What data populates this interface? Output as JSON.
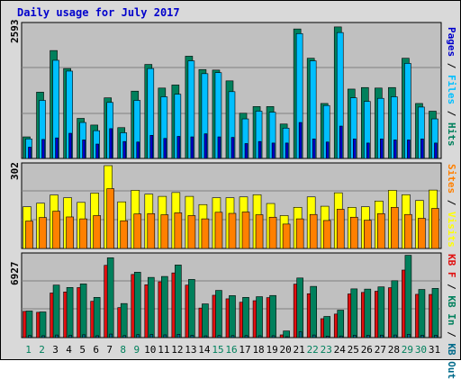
{
  "title": "Daily usage for July 2017",
  "colors": {
    "background": "#ffffff",
    "frame": "#d9d9d9",
    "plot": "#c0c0c0",
    "hits": "#00805c",
    "files": "#00bfff",
    "pages": "#0000cc",
    "visits": "#ffff00",
    "sites": "#ff8000",
    "kbin": "#00805c",
    "kbout": "#006a8a",
    "kbf": "#e01010",
    "weekday": "#000000",
    "weekend": "#00805c",
    "text": "#000000",
    "title": "#0000cc"
  },
  "chart_data": [
    {
      "type": "bar",
      "name_text": "Hits, Files, Pages",
      "y_max_label": "2593",
      "ylim": [
        0,
        2593
      ],
      "legend": [
        {
          "label": "Pages",
          "color": "#0000cc"
        },
        {
          "label": "Files",
          "color": "#00bfff"
        },
        {
          "label": "Hits",
          "color": "#00805c"
        }
      ],
      "categories": [
        "1",
        "2",
        "3",
        "4",
        "5",
        "6",
        "7",
        "8",
        "9",
        "10",
        "11",
        "12",
        "13",
        "14",
        "15",
        "16",
        "17",
        "18",
        "19",
        "20",
        "21",
        "22",
        "23",
        "24",
        "25",
        "26",
        "27",
        "28",
        "29",
        "30",
        "31"
      ],
      "weekend_days": [
        1,
        2,
        8,
        9,
        15,
        16,
        22,
        23,
        29,
        30
      ],
      "series": [
        {
          "name": "Hits",
          "values": [
            420,
            1290,
            2100,
            1750,
            780,
            650,
            1180,
            600,
            1310,
            1830,
            1370,
            1430,
            1990,
            1730,
            1720,
            1510,
            880,
            1010,
            1010,
            670,
            2520,
            1950,
            1070,
            2560,
            1350,
            1380,
            1370,
            1380,
            1950,
            1070,
            920
          ]
        },
        {
          "name": "Files",
          "values": [
            380,
            1130,
            1910,
            1700,
            700,
            540,
            1090,
            500,
            1130,
            1750,
            1200,
            1250,
            1900,
            1650,
            1670,
            1300,
            770,
            920,
            900,
            590,
            2430,
            1900,
            1030,
            2450,
            1180,
            1110,
            1170,
            1200,
            1850,
            1000,
            770
          ]
        },
        {
          "name": "Pages",
          "values": [
            220,
            370,
            400,
            490,
            360,
            280,
            580,
            330,
            320,
            450,
            390,
            430,
            420,
            480,
            420,
            410,
            290,
            330,
            300,
            300,
            700,
            380,
            320,
            630,
            380,
            300,
            380,
            360,
            360,
            380,
            300
          ]
        }
      ]
    },
    {
      "type": "bar",
      "name_text": "Visits, Sites",
      "y_max_label": "302",
      "ylim": [
        0,
        302
      ],
      "legend": [
        {
          "label": "Sites",
          "color": "#ff8000"
        },
        {
          "label": "Visits",
          "color": "#ffff00"
        }
      ],
      "categories": [
        "1",
        "2",
        "3",
        "4",
        "5",
        "6",
        "7",
        "8",
        "9",
        "10",
        "11",
        "12",
        "13",
        "14",
        "15",
        "16",
        "17",
        "18",
        "19",
        "20",
        "21",
        "22",
        "23",
        "24",
        "25",
        "26",
        "27",
        "28",
        "29",
        "30",
        "31"
      ],
      "series": [
        {
          "name": "Visits",
          "values": [
            152,
            165,
            195,
            185,
            168,
            202,
            302,
            170,
            212,
            198,
            190,
            204,
            190,
            160,
            185,
            185,
            188,
            196,
            164,
            120,
            150,
            188,
            154,
            203,
            150,
            152,
            173,
            212,
            196,
            175,
            213
          ]
        },
        {
          "name": "Sites",
          "values": [
            100,
            113,
            136,
            115,
            108,
            120,
            218,
            101,
            126,
            127,
            123,
            130,
            120,
            108,
            132,
            128,
            133,
            123,
            114,
            89,
            108,
            124,
            102,
            143,
            114,
            103,
            127,
            150,
            124,
            110,
            146
          ]
        }
      ]
    },
    {
      "type": "bar",
      "name_text": "KB F, KB In, KB Out",
      "y_max_label": "6927",
      "ylim": [
        0,
        6927
      ],
      "legend": [
        {
          "label": "KB F",
          "color": "#e01010"
        },
        {
          "label": "KB In",
          "color": "#00805c"
        },
        {
          "label": "KB Out",
          "color": "#006a8a"
        }
      ],
      "categories": [
        "1",
        "2",
        "3",
        "4",
        "5",
        "6",
        "7",
        "8",
        "9",
        "10",
        "11",
        "12",
        "13",
        "14",
        "15",
        "16",
        "17",
        "18",
        "19",
        "20",
        "21",
        "22",
        "23",
        "24",
        "25",
        "26",
        "27",
        "28",
        "29",
        "30",
        "31"
      ],
      "series": [
        {
          "name": "KB F",
          "values": [
            2220,
            2140,
            3770,
            3860,
            4230,
            3070,
            6110,
            2540,
            5340,
            4470,
            4720,
            5470,
            4440,
            2500,
            3580,
            3280,
            2990,
            3120,
            3380,
            230,
            4520,
            3710,
            1600,
            1990,
            3690,
            3820,
            3920,
            4220,
            5710,
            3660,
            3650
          ]
        },
        {
          "name": "KB In",
          "values": [
            2250,
            2170,
            4440,
            4240,
            4540,
            3400,
            6750,
            2880,
            5530,
            5090,
            5170,
            6140,
            4920,
            2850,
            3990,
            3550,
            3400,
            3460,
            3560,
            560,
            5040,
            4330,
            1790,
            2320,
            4120,
            4100,
            4290,
            4810,
            6960,
            4070,
            4160
          ]
        },
        {
          "name": "KB Out",
          "values": [
            180,
            160,
            220,
            200,
            240,
            160,
            300,
            170,
            250,
            260,
            230,
            280,
            200,
            150,
            180,
            170,
            170,
            160,
            160,
            40,
            490,
            220,
            120,
            140,
            200,
            200,
            210,
            220,
            280,
            200,
            200
          ]
        }
      ]
    }
  ]
}
